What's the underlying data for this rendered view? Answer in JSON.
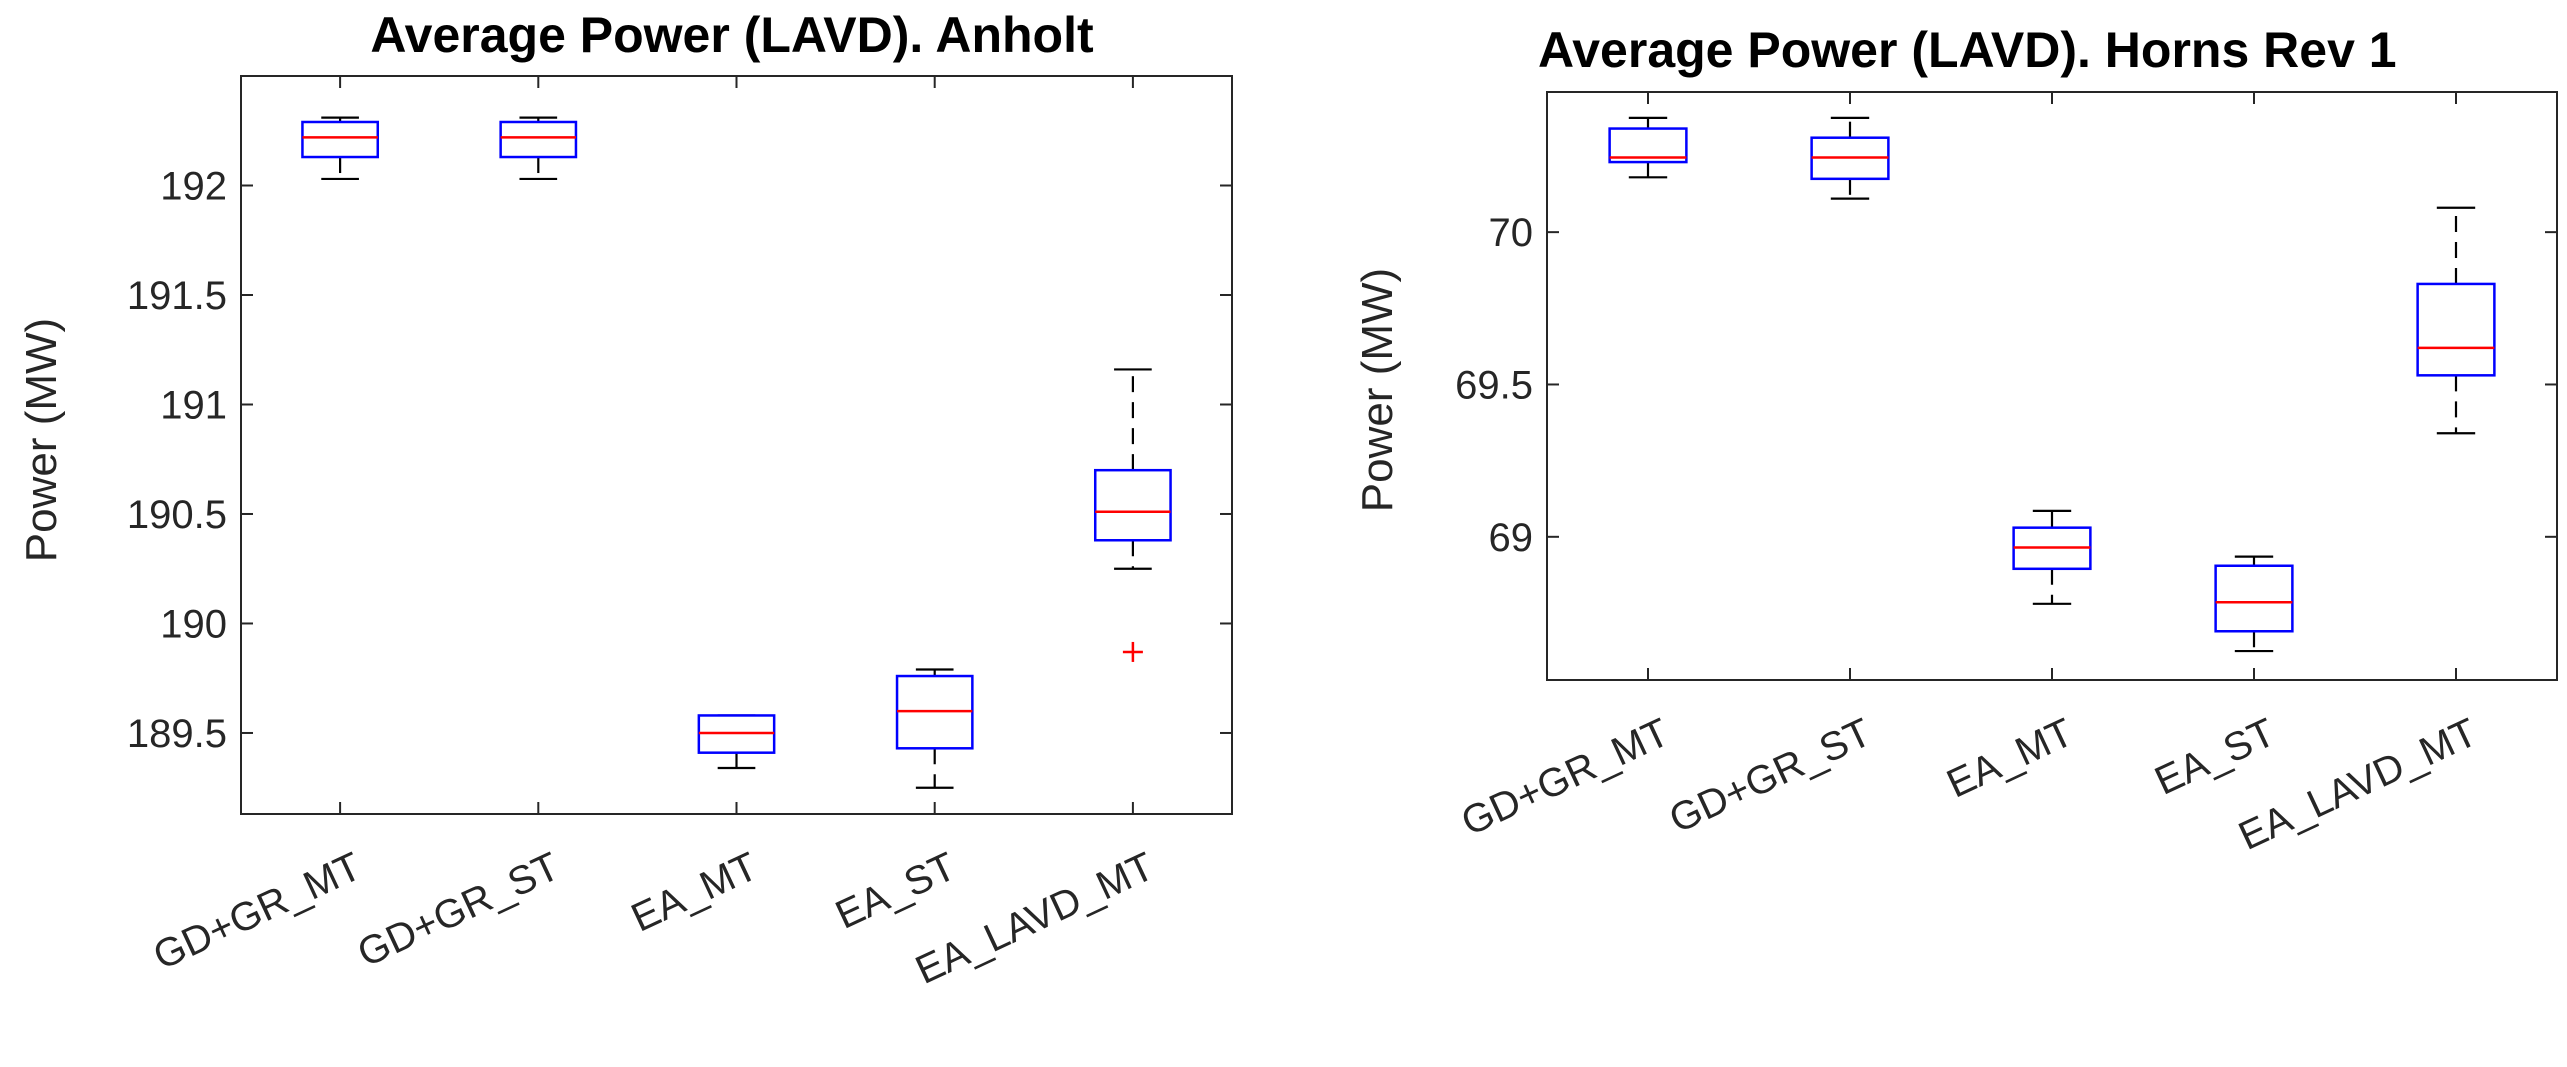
{
  "chart_data": [
    {
      "type": "box",
      "title": "Average Power (LAVD). Anholt",
      "xlabel": "",
      "ylabel": "Power (MW)",
      "ylim": [
        189.13,
        192.5
      ],
      "yticks": [
        189.5,
        190,
        190.5,
        191,
        191.5,
        192
      ],
      "ytick_labels": [
        "189.5",
        "190",
        "190.5",
        "191",
        "191.5",
        "192"
      ],
      "categories": [
        "GD+GR_MT",
        "GD+GR_ST",
        "EA_MT",
        "EA_ST",
        "EA_LAVD_MT"
      ],
      "boxes": [
        {
          "min": 192.03,
          "q1": 192.13,
          "median": 192.22,
          "q3": 192.29,
          "max": 192.31,
          "outliers": []
        },
        {
          "min": 192.03,
          "q1": 192.13,
          "median": 192.22,
          "q3": 192.29,
          "max": 192.31,
          "outliers": []
        },
        {
          "min": 189.34,
          "q1": 189.41,
          "median": 189.5,
          "q3": 189.58,
          "max": 189.58,
          "outliers": []
        },
        {
          "min": 189.25,
          "q1": 189.43,
          "median": 189.6,
          "q3": 189.76,
          "max": 189.79,
          "outliers": []
        },
        {
          "min": 190.25,
          "q1": 190.38,
          "median": 190.51,
          "q3": 190.7,
          "max": 191.16,
          "outliers": [
            189.87
          ]
        }
      ],
      "colors": {
        "box": "#0000ff",
        "median": "#ff0000",
        "whisker": "#000000",
        "outlier": "#ff0000"
      }
    },
    {
      "type": "box",
      "title": "Average Power (LAVD). Horns Rev 1",
      "xlabel": "",
      "ylabel": "Power (MW)",
      "ylim": [
        68.53,
        70.46
      ],
      "yticks": [
        69,
        69.5,
        70
      ],
      "ytick_labels": [
        "69",
        "69.5",
        "70"
      ],
      "categories": [
        "GD+GR_MT",
        "GD+GR_ST",
        "EA_MT",
        "EA_ST",
        "EA_LAVD_MT"
      ],
      "boxes": [
        {
          "min": 70.18,
          "q1": 70.23,
          "median": 70.245,
          "q3": 70.34,
          "max": 70.375,
          "outliers": []
        },
        {
          "min": 70.11,
          "q1": 70.175,
          "median": 70.245,
          "q3": 70.31,
          "max": 70.375,
          "outliers": []
        },
        {
          "min": 68.78,
          "q1": 68.895,
          "median": 68.965,
          "q3": 69.03,
          "max": 69.085,
          "outliers": []
        },
        {
          "min": 68.625,
          "q1": 68.69,
          "median": 68.785,
          "q3": 68.905,
          "max": 68.935,
          "outliers": []
        },
        {
          "min": 69.34,
          "q1": 69.53,
          "median": 69.62,
          "q3": 69.83,
          "max": 70.08,
          "outliers": []
        }
      ],
      "colors": {
        "box": "#0000ff",
        "median": "#ff0000",
        "whisker": "#000000",
        "outlier": "#ff0000"
      }
    }
  ]
}
